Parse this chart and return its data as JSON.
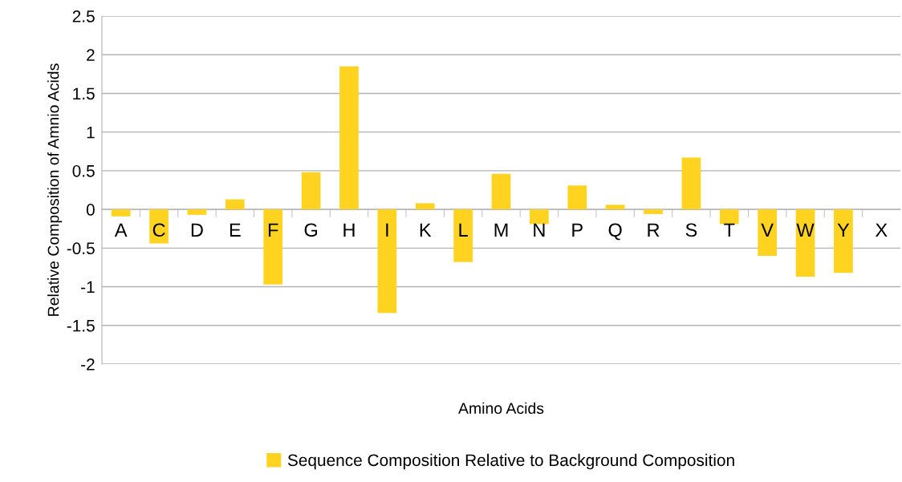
{
  "chart_data": {
    "type": "bar",
    "xlabel": "Amino Acids",
    "ylabel": "Relative Composition of Amnio Acids",
    "categories": [
      "A",
      "C",
      "D",
      "E",
      "F",
      "G",
      "H",
      "I",
      "K",
      "L",
      "M",
      "N",
      "P",
      "Q",
      "R",
      "S",
      "T",
      "V",
      "W",
      "Y",
      "X"
    ],
    "series": [
      {
        "name": "Sequence Composition Relative to Background Composition",
        "color": "#ffd320",
        "values": [
          -0.09,
          -0.44,
          -0.07,
          0.13,
          -0.97,
          0.48,
          1.85,
          -1.34,
          0.08,
          -0.68,
          0.46,
          -0.19,
          0.31,
          0.06,
          -0.06,
          0.67,
          -0.19,
          -0.6,
          -0.87,
          -0.82,
          0
        ]
      }
    ],
    "ylim": [
      -2,
      2.5
    ],
    "yticks": [
      -2,
      -1.5,
      -1,
      -0.5,
      0,
      0.5,
      1,
      1.5,
      2,
      2.5
    ],
    "grid": "y",
    "legend": "bottom"
  }
}
